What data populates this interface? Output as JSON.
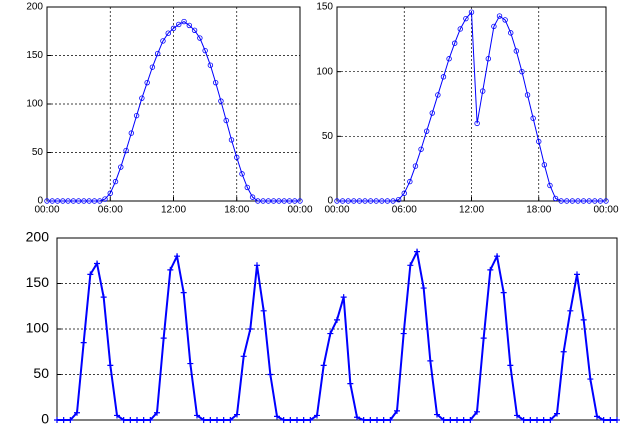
{
  "chart_data": [
    {
      "type": "line",
      "color": "#0000ff",
      "marker": "o",
      "grid": true,
      "xlim": [
        0,
        24
      ],
      "xticks": [
        {
          "value": 0,
          "label": "00:00"
        },
        {
          "value": 6,
          "label": "06:00"
        },
        {
          "value": 12,
          "label": "12:00"
        },
        {
          "value": 18,
          "label": "18:00"
        },
        {
          "value": 24,
          "label": "00:00"
        }
      ],
      "ylim": [
        0,
        200
      ],
      "yticks": [
        0,
        50,
        100,
        150,
        200
      ],
      "x": [
        0,
        0.5,
        1,
        1.5,
        2,
        2.5,
        3,
        3.5,
        4,
        4.5,
        5,
        5.5,
        6,
        6.5,
        7,
        7.5,
        8,
        8.5,
        9,
        9.5,
        10,
        10.5,
        11,
        11.5,
        12,
        12.5,
        13,
        13.5,
        14,
        14.5,
        15,
        15.5,
        16,
        16.5,
        17,
        17.5,
        18,
        18.5,
        19,
        19.5,
        20,
        20.5,
        21,
        21.5,
        22,
        22.5,
        23,
        23.5,
        24
      ],
      "values": [
        0,
        0,
        0,
        0,
        0,
        0,
        0,
        0,
        0,
        0,
        0,
        2,
        8,
        20,
        35,
        52,
        70,
        88,
        106,
        122,
        138,
        152,
        165,
        173,
        178,
        182,
        185,
        181,
        176,
        168,
        155,
        140,
        122,
        103,
        83,
        63,
        45,
        28,
        14,
        4,
        0,
        0,
        0,
        0,
        0,
        0,
        0,
        0,
        0
      ]
    },
    {
      "type": "line",
      "color": "#0000ff",
      "marker": "o",
      "grid": true,
      "xlim": [
        0,
        24
      ],
      "xticks": [
        {
          "value": 0,
          "label": "00:00"
        },
        {
          "value": 6,
          "label": "06:00"
        },
        {
          "value": 12,
          "label": "12:00"
        },
        {
          "value": 18,
          "label": "18:00"
        },
        {
          "value": 24,
          "label": "00:00"
        }
      ],
      "ylim": [
        0,
        150
      ],
      "yticks": [
        0,
        50,
        100,
        150
      ],
      "x": [
        0,
        0.5,
        1,
        1.5,
        2,
        2.5,
        3,
        3.5,
        4,
        4.5,
        5,
        5.5,
        6,
        6.5,
        7,
        7.5,
        8,
        8.5,
        9,
        9.5,
        10,
        10.5,
        11,
        11.5,
        12,
        12.5,
        13,
        13.5,
        14,
        14.5,
        15,
        15.5,
        16,
        16.5,
        17,
        17.5,
        18,
        18.5,
        19,
        19.5,
        20,
        20.5,
        21,
        21.5,
        22,
        22.5,
        23,
        23.5,
        24
      ],
      "values": [
        0,
        0,
        0,
        0,
        0,
        0,
        0,
        0,
        0,
        0,
        0,
        1,
        6,
        15,
        27,
        40,
        54,
        68,
        82,
        96,
        110,
        122,
        133,
        141,
        146,
        60,
        85,
        110,
        135,
        143,
        140,
        130,
        116,
        100,
        82,
        64,
        46,
        28,
        12,
        2,
        0,
        0,
        0,
        0,
        0,
        0,
        0,
        0,
        0
      ]
    },
    {
      "type": "line",
      "color": "#0000ff",
      "marker": "+",
      "grid": true,
      "xlim": [
        0,
        168
      ],
      "ylim": [
        0,
        200
      ],
      "yticks": [
        0,
        50,
        100,
        150,
        200
      ],
      "x": [
        0,
        2,
        4,
        6,
        8,
        10,
        12,
        14,
        16,
        18,
        20,
        22,
        24,
        26,
        28,
        30,
        32,
        34,
        36,
        38,
        40,
        42,
        44,
        46,
        48,
        50,
        52,
        54,
        56,
        58,
        60,
        62,
        64,
        66,
        68,
        70,
        72,
        74,
        76,
        78,
        80,
        82,
        84,
        86,
        88,
        90,
        92,
        94,
        96,
        98,
        100,
        102,
        104,
        106,
        108,
        110,
        112,
        114,
        116,
        118,
        120,
        122,
        124,
        126,
        128,
        130,
        132,
        134,
        136,
        138,
        140,
        142,
        144,
        146,
        148,
        150,
        152,
        154,
        156,
        158,
        160,
        162,
        164,
        166,
        168
      ],
      "values": [
        0,
        0,
        0,
        8,
        85,
        160,
        172,
        135,
        60,
        5,
        0,
        0,
        0,
        0,
        0,
        8,
        90,
        165,
        180,
        140,
        62,
        5,
        0,
        0,
        0,
        0,
        0,
        6,
        70,
        100,
        170,
        120,
        50,
        4,
        0,
        0,
        0,
        0,
        0,
        5,
        60,
        95,
        110,
        135,
        40,
        3,
        0,
        0,
        0,
        0,
        0,
        10,
        95,
        170,
        185,
        145,
        65,
        6,
        0,
        0,
        0,
        0,
        0,
        9,
        90,
        165,
        180,
        140,
        60,
        5,
        0,
        0,
        0,
        0,
        0,
        7,
        75,
        120,
        160,
        110,
        45,
        4,
        0,
        0,
        0
      ]
    }
  ]
}
